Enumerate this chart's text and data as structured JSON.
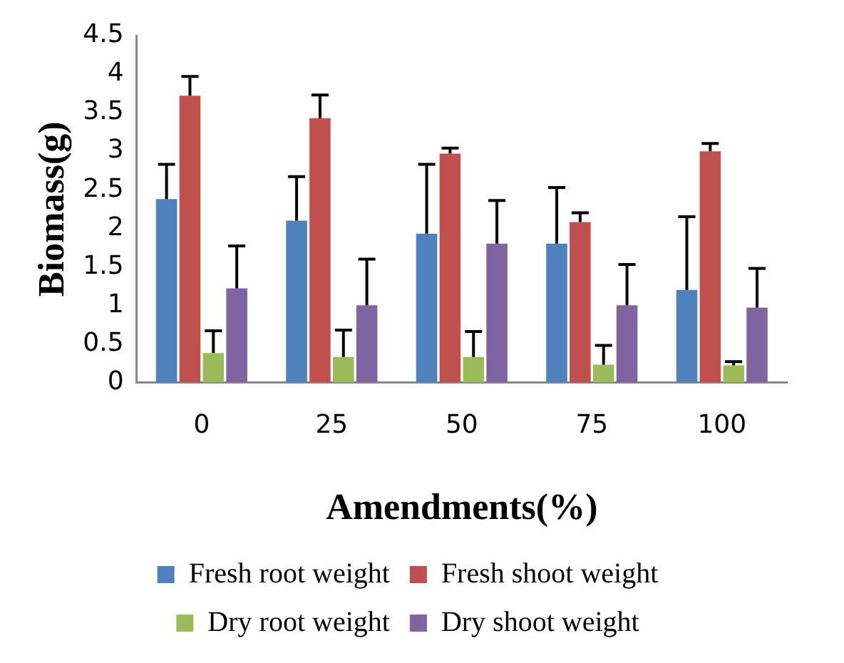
{
  "chart_data": {
    "type": "bar",
    "xlabel": "Amendments(%)",
    "ylabel": "Biomass(g)",
    "categories": [
      "0",
      "25",
      "50",
      "75",
      "100"
    ],
    "series": [
      {
        "name": "Fresh root weight",
        "color": "#4f81bd",
        "values": [
          2.38,
          2.1,
          1.93,
          1.8,
          1.2
        ],
        "errors": [
          [
            2.38,
            2.83
          ],
          [
            2.1,
            2.67
          ],
          [
            1.93,
            2.83
          ],
          [
            1.8,
            2.53
          ],
          [
            1.2,
            2.15
          ]
        ]
      },
      {
        "name": "Fresh shoot weight",
        "color": "#c0504d",
        "values": [
          3.72,
          3.43,
          2.97,
          2.08,
          3.0
        ],
        "errors": [
          [
            3.72,
            3.97
          ],
          [
            3.43,
            3.73
          ],
          [
            2.97,
            3.04
          ],
          [
            2.08,
            2.2
          ],
          [
            3.0,
            3.1
          ]
        ]
      },
      {
        "name": "Dry root weight",
        "color": "#9bbb59",
        "values": [
          0.38,
          0.33,
          0.33,
          0.23,
          0.22
        ],
        "errors": [
          [
            0.38,
            0.67
          ],
          [
            0.33,
            0.68
          ],
          [
            0.33,
            0.66
          ],
          [
            0.23,
            0.48
          ],
          [
            0.22,
            0.27
          ]
        ]
      },
      {
        "name": "Dry shoot weight",
        "color": "#8064a2",
        "values": [
          1.22,
          1.0,
          1.8,
          1.0,
          0.97
        ],
        "errors": [
          [
            1.22,
            1.77
          ],
          [
            1.0,
            1.6
          ],
          [
            1.8,
            2.36
          ],
          [
            1.0,
            1.53
          ],
          [
            0.97,
            1.48
          ]
        ]
      }
    ],
    "ylim": [
      0,
      4.5
    ],
    "yticks": [
      0,
      0.5,
      1,
      1.5,
      2,
      2.5,
      3,
      3.5,
      4,
      4.5
    ],
    "grid": false,
    "legend": "bottom"
  }
}
